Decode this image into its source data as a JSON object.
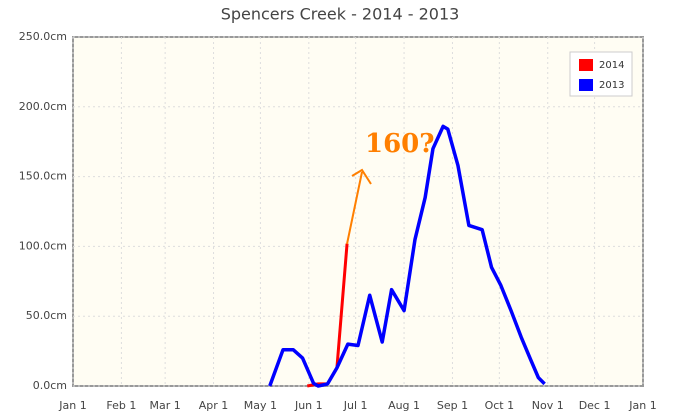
{
  "chart_data": {
    "type": "line",
    "title": "Spencers Creek - 2014 - 2013",
    "annotation": "160?",
    "x": null,
    "series": [
      {
        "name": "2014",
        "color": "#ff0000",
        "x": [
          150,
          157,
          163,
          169,
          175.5
        ],
        "values": [
          0,
          1.5,
          1.5,
          13,
          102
        ]
      },
      {
        "name": "2013",
        "color": "#0000ff",
        "x": [
          126,
          134.5,
          141,
          147,
          154,
          157,
          163,
          169,
          176,
          182.5,
          190,
          198,
          204,
          212,
          219,
          225.5,
          230.5,
          237,
          240,
          246.5,
          253.5,
          262,
          268,
          274,
          280.5,
          287,
          293,
          298,
          302
        ],
        "values": [
          0,
          26,
          26,
          20,
          2,
          0,
          1.5,
          13,
          30,
          29,
          65,
          31.5,
          69,
          54,
          105,
          135,
          170,
          186,
          184,
          158,
          115,
          112,
          85,
          72,
          54,
          35,
          19,
          6,
          1.5
        ]
      }
    ],
    "xlim": [
      0,
      365
    ],
    "xticks": [
      {
        "value": 0,
        "label": "Jan 1"
      },
      {
        "value": 31,
        "label": "Feb 1"
      },
      {
        "value": 59,
        "label": "Mar 1"
      },
      {
        "value": 90,
        "label": "Apr 1"
      },
      {
        "value": 120,
        "label": "May 1"
      },
      {
        "value": 151,
        "label": "Jun 1"
      },
      {
        "value": 181,
        "label": "Jul 1"
      },
      {
        "value": 212,
        "label": "Aug 1"
      },
      {
        "value": 243,
        "label": "Sep 1"
      },
      {
        "value": 273,
        "label": "Oct 1"
      },
      {
        "value": 304,
        "label": "Nov 1"
      },
      {
        "value": 334,
        "label": "Dec 1"
      },
      {
        "value": 365,
        "label": "Jan 1"
      }
    ],
    "ylim": [
      0,
      250
    ],
    "yticks": [
      {
        "value": 0,
        "label": "0.0cm"
      },
      {
        "value": 50,
        "label": "50.0cm"
      },
      {
        "value": 100,
        "label": "100.0cm"
      },
      {
        "value": 150,
        "label": "150.0cm"
      },
      {
        "value": 200,
        "label": "200.0cm"
      },
      {
        "value": 250,
        "label": "250.0cm"
      }
    ],
    "grid": true,
    "legend": "top-right"
  }
}
